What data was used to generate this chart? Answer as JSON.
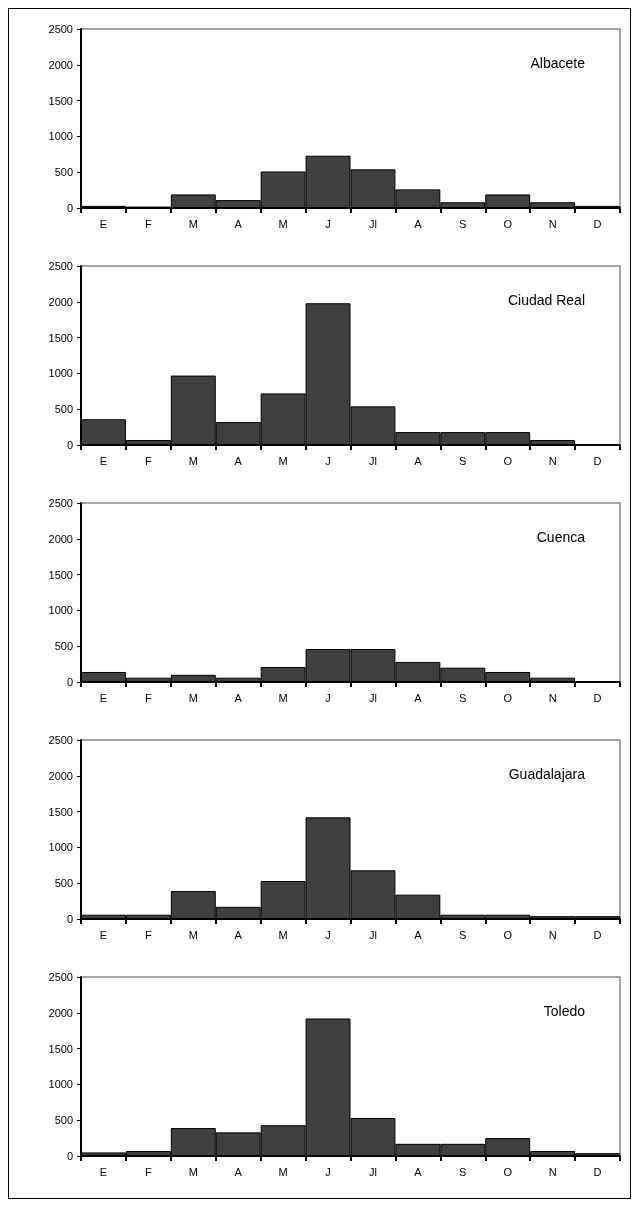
{
  "chart_data": [
    {
      "type": "bar",
      "title": "Albacete",
      "categories": [
        "E",
        "F",
        "M",
        "A",
        "M",
        "J",
        "Jl",
        "A",
        "S",
        "O",
        "N",
        "D"
      ],
      "values": [
        30,
        20,
        190,
        110,
        510,
        730,
        540,
        260,
        80,
        190,
        80,
        30
      ],
      "color": "#404040",
      "ylim": [
        0,
        2500
      ],
      "yticks": [
        0,
        500,
        1000,
        1500,
        2000,
        2500
      ],
      "grid": false
    },
    {
      "type": "bar",
      "title": "Ciudad Real",
      "categories": [
        "E",
        "F",
        "M",
        "A",
        "M",
        "J",
        "Jl",
        "A",
        "S",
        "O",
        "N",
        "D"
      ],
      "values": [
        360,
        70,
        970,
        320,
        720,
        1980,
        540,
        180,
        180,
        180,
        70,
        0
      ],
      "color": "#404040",
      "ylim": [
        0,
        2500
      ],
      "yticks": [
        0,
        500,
        1000,
        1500,
        2000,
        2500
      ],
      "grid": false
    },
    {
      "type": "bar",
      "title": "Cuenca",
      "categories": [
        "E",
        "F",
        "M",
        "A",
        "M",
        "J",
        "Jl",
        "A",
        "S",
        "O",
        "N",
        "D"
      ],
      "values": [
        140,
        60,
        100,
        60,
        210,
        460,
        460,
        280,
        200,
        140,
        60,
        0
      ],
      "color": "#404040",
      "ylim": [
        0,
        2500
      ],
      "yticks": [
        0,
        500,
        1000,
        1500,
        2000,
        2500
      ],
      "grid": false
    },
    {
      "type": "bar",
      "title": "Guadalajara",
      "categories": [
        "E",
        "F",
        "M",
        "A",
        "M",
        "J",
        "Jl",
        "A",
        "S",
        "O",
        "N",
        "D"
      ],
      "values": [
        60,
        60,
        390,
        170,
        530,
        1420,
        680,
        340,
        60,
        60,
        40,
        40
      ],
      "color": "#404040",
      "ylim": [
        0,
        2500
      ],
      "yticks": [
        0,
        500,
        1000,
        1500,
        2000,
        2500
      ],
      "grid": false
    },
    {
      "type": "bar",
      "title": "Toledo",
      "categories": [
        "E",
        "F",
        "M",
        "A",
        "M",
        "J",
        "Jl",
        "A",
        "S",
        "O",
        "N",
        "D"
      ],
      "values": [
        50,
        70,
        390,
        330,
        430,
        1920,
        530,
        170,
        170,
        250,
        70,
        40
      ],
      "color": "#404040",
      "ylim": [
        0,
        2500
      ],
      "yticks": [
        0,
        500,
        1000,
        1500,
        2000,
        2500
      ],
      "grid": false
    }
  ]
}
